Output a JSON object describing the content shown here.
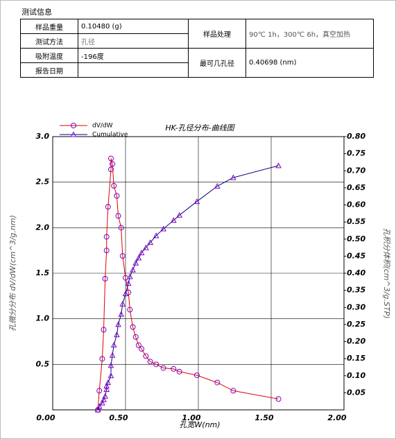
{
  "info": {
    "title": "测试信息",
    "left": [
      {
        "label": "样品重量",
        "value": "0.10480 (g)"
      },
      {
        "label": "测试方法",
        "value": "孔径"
      },
      {
        "label": "吸附温度",
        "value": "-196度"
      },
      {
        "label": "报告日期"
      }
    ],
    "right": [
      {
        "label": "样品处理",
        "value": "90℃ 1h，300℃ 6h，真空加热"
      },
      {
        "label": "最可几孔径",
        "value": "0.40698 (nm)"
      }
    ]
  },
  "chart_data": {
    "type": "line",
    "title": "HK-孔径分布-曲线图",
    "x_label": "孔宽W(nm)",
    "y_label": "孔微分分布 dV/dW(cm^3/g.nm)",
    "y2_label": "孔积分体积(cm^3/g.STP)",
    "x": [
      0.31,
      0.32,
      0.34,
      0.35,
      0.36,
      0.37,
      0.37,
      0.38,
      0.4,
      0.4,
      0.41,
      0.42,
      0.44,
      0.45,
      0.47,
      0.48,
      0.5,
      0.52,
      0.53,
      0.55,
      0.57,
      0.59,
      0.61,
      0.64,
      0.67,
      0.71,
      0.76,
      0.83,
      0.87,
      0.99,
      1.13,
      1.24,
      1.55
    ],
    "series": [
      {
        "name": "dV/dW",
        "color": "#e00000",
        "marker_color": "#8000c0",
        "marker": "circle",
        "values": [
          0.0,
          0.21,
          0.56,
          0.88,
          1.44,
          1.75,
          1.9,
          2.23,
          2.64,
          2.76,
          2.7,
          2.46,
          2.35,
          2.13,
          2.0,
          1.69,
          1.45,
          1.29,
          1.1,
          0.91,
          0.8,
          0.71,
          0.67,
          0.59,
          0.53,
          0.5,
          0.46,
          0.45,
          0.42,
          0.38,
          0.3,
          0.21,
          0.12
        ]
      },
      {
        "name": "Cumulative",
        "color": "#000080",
        "marker_color": "#8000c0",
        "marker": "triangle",
        "axis": "y2",
        "values": [
          0.0,
          0.01,
          0.02,
          0.03,
          0.04,
          0.06,
          0.07,
          0.08,
          0.1,
          0.13,
          0.16,
          0.19,
          0.22,
          0.25,
          0.28,
          0.31,
          0.34,
          0.37,
          0.39,
          0.41,
          0.43,
          0.445,
          0.46,
          0.475,
          0.49,
          0.51,
          0.53,
          0.555,
          0.57,
          0.61,
          0.655,
          0.68,
          0.715
        ]
      }
    ],
    "xlim": [
      0,
      2
    ],
    "xticks": [
      {
        "value": 0,
        "label": "0.00"
      },
      {
        "value": 0.5,
        "label": "0.50"
      },
      {
        "value": 1,
        "label": "1.00"
      },
      {
        "value": 1.5,
        "label": "1.50"
      },
      {
        "value": 2,
        "label": "2.00"
      }
    ],
    "ylim": [
      0,
      3
    ],
    "yticks": [
      0.5,
      {
        "value": 1,
        "label": "1.0"
      },
      1.5,
      {
        "value": 2,
        "label": "2.0"
      },
      2.5,
      {
        "value": 3,
        "label": "3.0"
      }
    ],
    "y2lim": [
      0,
      0.8
    ],
    "y2ticks": [
      0.05,
      {
        "value": 0.1,
        "label": "0.10"
      },
      0.15,
      {
        "value": 0.2,
        "label": "0.20"
      },
      0.25,
      {
        "value": 0.3,
        "label": "0.30"
      },
      0.35,
      {
        "value": 0.4,
        "label": "0.40"
      },
      0.45,
      {
        "value": 0.5,
        "label": "0.50"
      },
      0.55,
      {
        "value": 0.6,
        "label": "0.60"
      },
      0.65,
      {
        "value": 0.7,
        "label": "0.70"
      },
      0.75,
      {
        "value": 0.8,
        "label": "0.80"
      }
    ],
    "grid": true,
    "legend": "top-left"
  }
}
